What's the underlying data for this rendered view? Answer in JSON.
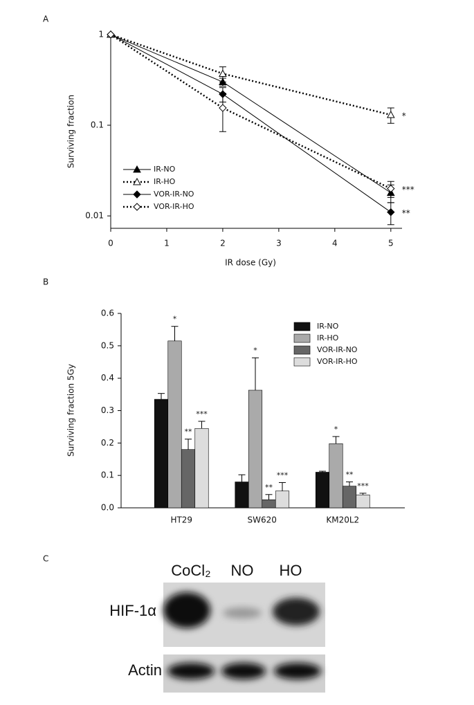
{
  "chart_data": [
    {
      "type": "line",
      "label": "A",
      "x_label": "IR dose (Gy)",
      "y_label": "Surviving fraction",
      "log_y": true,
      "xlim": [
        0,
        5.2
      ],
      "ylim": [
        0.0073,
        1.09
      ],
      "xticks": [
        0,
        1,
        2,
        3,
        4,
        5
      ],
      "yticks": [
        0.01,
        0.1,
        1
      ],
      "x": [
        0,
        2,
        5
      ],
      "legend": "lower left",
      "series": [
        {
          "name": "IR-NO",
          "color": "#000000",
          "dashed": false,
          "marker": "triangle",
          "filled": true,
          "values": [
            1,
            0.3,
            0.018
          ],
          "errors": [
            0,
            0.03,
            0.004
          ],
          "annotation": null
        },
        {
          "name": "IR-HO",
          "color": "#000000",
          "dashed": true,
          "marker": "triangle",
          "filled": false,
          "values": [
            1,
            0.37,
            0.13
          ],
          "errors": [
            0,
            0.07,
            0.025
          ],
          "annotation": "*"
        },
        {
          "name": "VOR-IR-NO",
          "color": "#000000",
          "dashed": false,
          "marker": "diamond",
          "filled": true,
          "values": [
            1,
            0.22,
            0.011
          ],
          "errors": [
            0,
            0.04,
            0.003
          ],
          "annotation": "**"
        },
        {
          "name": "VOR-IR-HO",
          "color": "#000000",
          "dashed": true,
          "marker": "diamond",
          "filled": false,
          "values": [
            1,
            0.155,
            0.02
          ],
          "errors": [
            0,
            0.07,
            0.004
          ],
          "annotation": "***"
        }
      ]
    },
    {
      "type": "bar",
      "label": "B",
      "y_label": "Surviving fraction 5Gy",
      "ylim": [
        0,
        0.6
      ],
      "yticks": [
        {
          "value": 0,
          "label": "0.0"
        },
        0.1,
        0.2,
        0.3,
        0.4,
        0.5,
        0.6
      ],
      "categories": [
        "HT29",
        "SW620",
        "KM20L2"
      ],
      "legend": "upper right",
      "series": [
        {
          "name": "IR-NO",
          "color": "#111111",
          "values": [
            0.335,
            0.08,
            0.11
          ],
          "errors": [
            0.018,
            0.022,
            0.003
          ],
          "annotations": [
            null,
            null,
            null
          ]
        },
        {
          "name": "IR-HO",
          "color": "#aaaaaa",
          "values": [
            0.515,
            0.363,
            0.198
          ],
          "errors": [
            0.045,
            0.1,
            0.022
          ],
          "annotations": [
            "*",
            "*",
            "*"
          ]
        },
        {
          "name": "VOR-IR-NO",
          "color": "#666666",
          "values": [
            0.18,
            0.025,
            0.067
          ],
          "errors": [
            0.032,
            0.016,
            0.013
          ],
          "annotations": [
            "**",
            "**",
            "**"
          ]
        },
        {
          "name": "VOR-IR-HO",
          "color": "#dddddd",
          "values": [
            0.245,
            0.052,
            0.04
          ],
          "errors": [
            0.022,
            0.026,
            0.005
          ],
          "annotations": [
            "***",
            "***",
            "***"
          ]
        }
      ]
    }
  ],
  "blot": {
    "label": "C",
    "lanes": [
      "CoCl₂",
      "NO",
      "HO"
    ],
    "rows": [
      "HIF-1α",
      "Actin"
    ]
  }
}
